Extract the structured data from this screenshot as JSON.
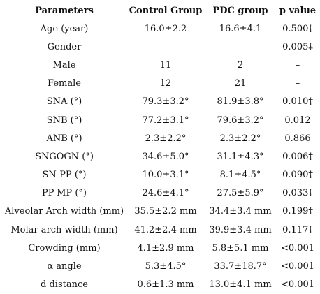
{
  "table": {
    "headers": [
      "Parameters",
      "Control Group",
      "PDC group",
      "p value"
    ],
    "rows": [
      [
        "Age (year)",
        "16.0±2.2",
        "16.6±4.1",
        "0.500†"
      ],
      [
        "Gender",
        "–",
        "–",
        "0.005‡"
      ],
      [
        "Male",
        "11",
        "2",
        "–"
      ],
      [
        "Female",
        "12",
        "21",
        "–"
      ],
      [
        "SNA (°)",
        "79.3±3.2°",
        "81.9±3.8°",
        "0.010†"
      ],
      [
        "SNB (°)",
        "77.2±3.1°",
        "79.6±3.2°",
        "0.012"
      ],
      [
        "ANB (°)",
        "2.3±2.2°",
        "2.3±2.2°",
        "0.866"
      ],
      [
        "SNGOGN (°)",
        "34.6±5.0°",
        "31.1±4.3°",
        "0.006†"
      ],
      [
        "SN-PP (°)",
        "10.0±3.1°",
        "8.1±4.5°",
        "0.090†"
      ],
      [
        "PP-MP (°)",
        "24.6±4.1°",
        "27.5±5.9°",
        "0.033†"
      ],
      [
        "Alveolar Arch width (mm)",
        "35.5±2.2 mm",
        "34.4±3.4 mm",
        "0.199†"
      ],
      [
        "Molar arch width (mm)",
        "41.2±2.4 mm",
        "39.9±3.4 mm",
        "0.117†"
      ],
      [
        "Crowding (mm)",
        "4.1±2.9 mm",
        "5.8±5.1 mm",
        "<0.001"
      ],
      [
        "α angle",
        "5.3±4.5°",
        "33.7±18.7°",
        "<0.001"
      ],
      [
        "d distance",
        "0.6±1.3 mm",
        "13.0±4.1 mm",
        "<0.001"
      ]
    ]
  }
}
